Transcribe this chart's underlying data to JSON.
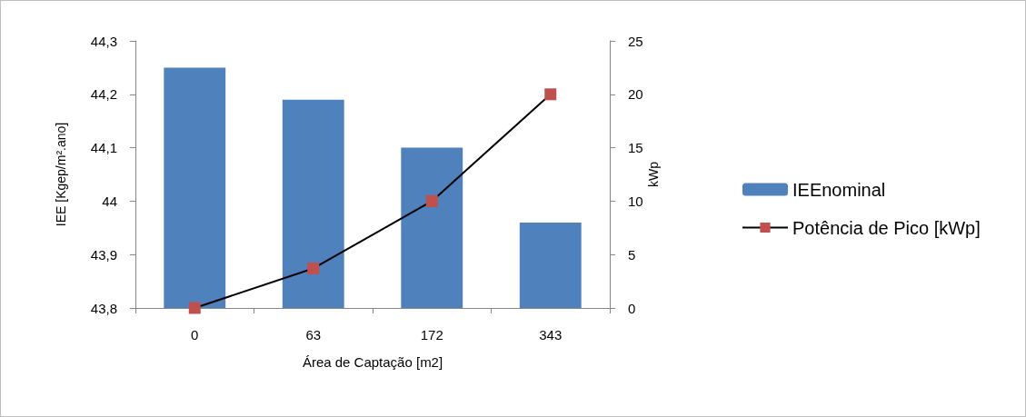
{
  "chart_data": {
    "type": "bar",
    "xlabel": "Área de Captação [m2]",
    "ylabel": "IEE [Kgep/m².ano]",
    "y2label": "kWp",
    "categories": [
      "0",
      "63",
      "172",
      "343"
    ],
    "series": [
      {
        "name": "IEEnominal",
        "color": "#4f81bd",
        "values": [
          44.25,
          44.19,
          44.1,
          43.96
        ]
      },
      {
        "name": "Potência de Pico [kWp]",
        "type": "line",
        "axis": "y2",
        "color": "#000000",
        "marker": "square",
        "values": [
          0,
          3.7,
          10,
          20
        ]
      }
    ],
    "ylim": [
      43.8,
      44.3
    ],
    "yticks": [
      {
        "value": 43.8,
        "label": "43,8"
      },
      {
        "value": 43.9,
        "label": "43,9"
      },
      {
        "value": 44,
        "label": "44"
      },
      {
        "value": 44.1,
        "label": "44,1"
      },
      {
        "value": 44.2,
        "label": "44,2"
      },
      {
        "value": 44.3,
        "label": "44,3"
      }
    ],
    "y2lim": [
      0,
      25
    ],
    "y2ticks": [
      0,
      5,
      10,
      15,
      20,
      25
    ],
    "grid": false,
    "legend": "right",
    "line_style": "solid"
  }
}
